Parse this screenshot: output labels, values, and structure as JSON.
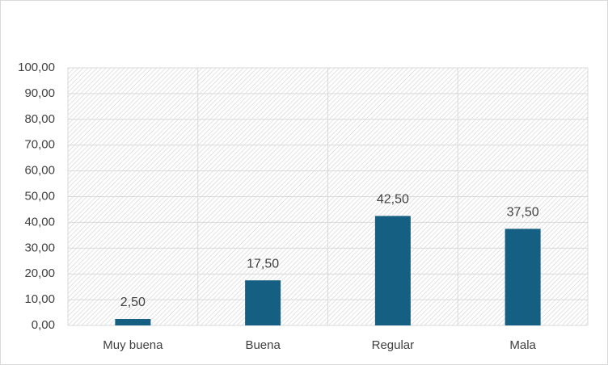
{
  "chart_data": {
    "type": "bar",
    "categories": [
      "Muy buena",
      "Buena",
      "Regular",
      "Mala"
    ],
    "values": [
      2.5,
      17.5,
      42.5,
      37.5
    ],
    "value_labels": [
      "2,50",
      "17,50",
      "42,50",
      "37,50"
    ],
    "color": "#155f82",
    "ylim": [
      0,
      100
    ],
    "yticks": [
      {
        "value": 0,
        "label": "0,00"
      },
      {
        "value": 10,
        "label": "10,00"
      },
      {
        "value": 20,
        "label": "20,00"
      },
      {
        "value": 30,
        "label": "30,00"
      },
      {
        "value": 40,
        "label": "40,00"
      },
      {
        "value": 50,
        "label": "50,00"
      },
      {
        "value": 60,
        "label": "60,00"
      },
      {
        "value": 70,
        "label": "70,00"
      },
      {
        "value": 80,
        "label": "80,00"
      },
      {
        "value": 90,
        "label": "90,00"
      },
      {
        "value": 100,
        "label": "100,00"
      }
    ],
    "grid": true
  }
}
